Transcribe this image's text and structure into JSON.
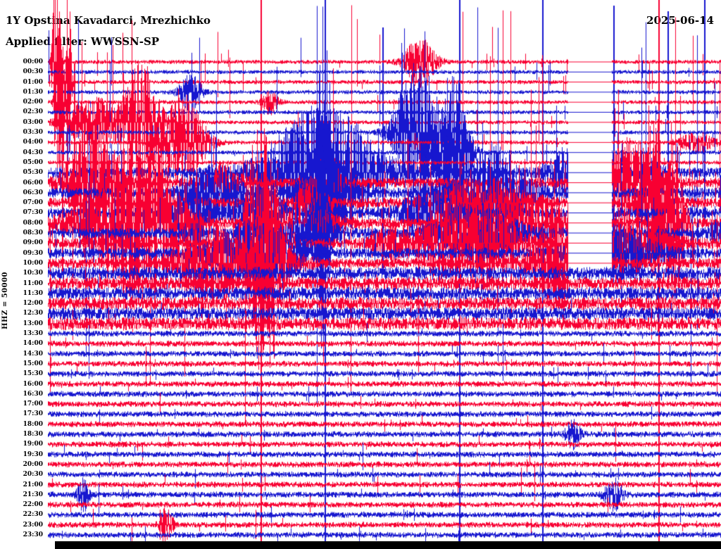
{
  "header": {
    "station": "1Y Opstina Kavadarci, Mrezhichko",
    "date": "2025-06-14",
    "filter_label": "Applied filter: WWSSN-SP"
  },
  "axis": {
    "channel_scale": "HHZ = 50000"
  },
  "colors": {
    "red": "#f80032",
    "blue": "#1717cf",
    "text": "#000000",
    "background": "#ffffff",
    "bottom_bar": "#000000"
  },
  "chart_data": {
    "type": "seismogram-helicorder",
    "title": "1Y Opstina Kavadarci, Mrezhichko",
    "date": "2025-06-14",
    "filter": "WWSSN-SP",
    "channel": "HHZ",
    "scale": 50000,
    "minutes_per_row": 30,
    "trace_color_cycle": [
      "red",
      "blue"
    ],
    "rows": [
      {
        "time": "00:00",
        "color": "red",
        "level": "spiky"
      },
      {
        "time": "00:30",
        "color": "blue",
        "level": "spiky"
      },
      {
        "time": "01:00",
        "color": "red",
        "level": "spiky"
      },
      {
        "time": "01:30",
        "color": "blue",
        "level": "spiky"
      },
      {
        "time": "02:00",
        "color": "red",
        "level": "spiky"
      },
      {
        "time": "02:30",
        "color": "blue",
        "level": "spiky"
      },
      {
        "time": "03:00",
        "color": "red",
        "level": "spiky"
      },
      {
        "time": "03:30",
        "color": "blue",
        "level": "spiky"
      },
      {
        "time": "04:00",
        "color": "red",
        "level": "spiky"
      },
      {
        "time": "04:30",
        "color": "blue",
        "level": "spiky"
      },
      {
        "time": "05:00",
        "color": "red",
        "level": "spiky"
      },
      {
        "time": "05:30",
        "color": "blue",
        "level": "extreme"
      },
      {
        "time": "06:00",
        "color": "red",
        "level": "extreme"
      },
      {
        "time": "06:30",
        "color": "blue",
        "level": "extreme"
      },
      {
        "time": "07:00",
        "color": "red",
        "level": "extreme"
      },
      {
        "time": "07:30",
        "color": "blue",
        "level": "extreme"
      },
      {
        "time": "08:00",
        "color": "red",
        "level": "extreme"
      },
      {
        "time": "08:30",
        "color": "blue",
        "level": "extreme"
      },
      {
        "time": "09:00",
        "color": "red",
        "level": "extreme"
      },
      {
        "time": "09:30",
        "color": "blue",
        "level": "extreme"
      },
      {
        "time": "10:00",
        "color": "red",
        "level": "extreme"
      },
      {
        "time": "10:30",
        "color": "blue",
        "level": "high"
      },
      {
        "time": "11:00",
        "color": "red",
        "level": "high"
      },
      {
        "time": "11:30",
        "color": "blue",
        "level": "high"
      },
      {
        "time": "12:00",
        "color": "red",
        "level": "high"
      },
      {
        "time": "12:30",
        "color": "blue",
        "level": "high"
      },
      {
        "time": "13:00",
        "color": "red",
        "level": "high"
      },
      {
        "time": "13:30",
        "color": "blue",
        "level": "moderate"
      },
      {
        "time": "14:00",
        "color": "red",
        "level": "moderate"
      },
      {
        "time": "14:30",
        "color": "blue",
        "level": "moderate"
      },
      {
        "time": "15:00",
        "color": "red",
        "level": "moderate"
      },
      {
        "time": "15:30",
        "color": "blue",
        "level": "moderate"
      },
      {
        "time": "16:00",
        "color": "red",
        "level": "moderate"
      },
      {
        "time": "16:30",
        "color": "blue",
        "level": "moderate"
      },
      {
        "time": "17:00",
        "color": "red",
        "level": "moderate"
      },
      {
        "time": "17:30",
        "color": "blue",
        "level": "moderate"
      },
      {
        "time": "18:00",
        "color": "red",
        "level": "moderate"
      },
      {
        "time": "18:30",
        "color": "blue",
        "level": "moderate"
      },
      {
        "time": "19:00",
        "color": "red",
        "level": "moderate"
      },
      {
        "time": "19:30",
        "color": "blue",
        "level": "moderate"
      },
      {
        "time": "20:00",
        "color": "red",
        "level": "moderate"
      },
      {
        "time": "20:30",
        "color": "blue",
        "level": "moderate"
      },
      {
        "time": "21:00",
        "color": "red",
        "level": "moderate"
      },
      {
        "time": "21:30",
        "color": "blue",
        "level": "moderate"
      },
      {
        "time": "22:00",
        "color": "red",
        "level": "moderate"
      },
      {
        "time": "22:30",
        "color": "blue",
        "level": "moderate"
      },
      {
        "time": "23:00",
        "color": "red",
        "level": "moderate"
      },
      {
        "time": "23:30",
        "color": "blue",
        "level": "moderate"
      }
    ],
    "gap": {
      "start_frac": 0.772,
      "end_frac": 0.837,
      "first_row_index": 0,
      "last_row_index": 20
    },
    "event_lines": [
      {
        "x_frac": 0.021,
        "color": "red",
        "top": 0.115,
        "bottom": 0.5
      },
      {
        "x_frac": 0.039,
        "color": "red",
        "top": 0.115,
        "bottom": 0.42
      },
      {
        "x_frac": 0.316,
        "color": "red",
        "top": 0.0,
        "bottom": 1.0
      },
      {
        "x_frac": 0.411,
        "color": "blue",
        "top": 0.0,
        "bottom": 1.0
      },
      {
        "x_frac": 0.497,
        "color": "blue",
        "top": 0.05,
        "bottom": 0.5
      },
      {
        "x_frac": 0.611,
        "color": "blue",
        "top": 0.0,
        "bottom": 1.0
      },
      {
        "x_frac": 0.734,
        "color": "blue",
        "top": 0.0,
        "bottom": 1.0
      },
      {
        "x_frac": 0.84,
        "color": "blue",
        "top": 0.01,
        "bottom": 0.46
      },
      {
        "x_frac": 0.907,
        "color": "red",
        "top": 0.0,
        "bottom": 1.0
      },
      {
        "x_frac": 0.921,
        "color": "blue",
        "top": 0.02,
        "bottom": 0.5
      },
      {
        "x_frac": 0.975,
        "color": "blue",
        "top": 0.0,
        "bottom": 0.4
      }
    ],
    "hot_spots": [
      {
        "row": 0,
        "x_frac": 0.012,
        "gain": 28,
        "width": 5
      },
      {
        "row": 2,
        "x_frac": 0.03,
        "gain": 22,
        "width": 4
      },
      {
        "row": 4,
        "x_frac": 0.018,
        "gain": 18,
        "width": 6
      },
      {
        "row": 6,
        "x_frac": 0.14,
        "gain": 12,
        "width": 25
      },
      {
        "row": 8,
        "x_frac": 0.2,
        "gain": 10,
        "width": 30
      },
      {
        "row": 7,
        "x_frac": 0.55,
        "gain": 16,
        "width": 30
      },
      {
        "row": 9,
        "x_frac": 0.6,
        "gain": 18,
        "width": 22
      },
      {
        "row": 13,
        "x_frac": 0.41,
        "gain": 30,
        "width": 9
      },
      {
        "row": 15,
        "x_frac": 0.405,
        "gain": 22,
        "width": 7
      },
      {
        "row": 18,
        "x_frac": 0.315,
        "gain": 25,
        "width": 22
      },
      {
        "row": 20,
        "x_frac": 0.33,
        "gain": 20,
        "width": 14
      },
      {
        "row": 14,
        "x_frac": 0.9,
        "gain": 16,
        "width": 18
      },
      {
        "row": 16,
        "x_frac": 0.93,
        "gain": 18,
        "width": 14
      },
      {
        "row": 12,
        "x_frac": 0.065,
        "gain": 14,
        "width": 30
      },
      {
        "row": 16,
        "x_frac": 0.15,
        "gain": 12,
        "width": 40
      },
      {
        "row": 20,
        "x_frac": 0.23,
        "gain": 10,
        "width": 35
      },
      {
        "row": 43,
        "x_frac": 0.052,
        "gain": 3.5,
        "width": 8
      },
      {
        "row": 46,
        "x_frac": 0.175,
        "gain": 4,
        "width": 8
      },
      {
        "row": 37,
        "x_frac": 0.78,
        "gain": 3,
        "width": 10
      },
      {
        "row": 43,
        "x_frac": 0.84,
        "gain": 3.5,
        "width": 12
      }
    ]
  }
}
